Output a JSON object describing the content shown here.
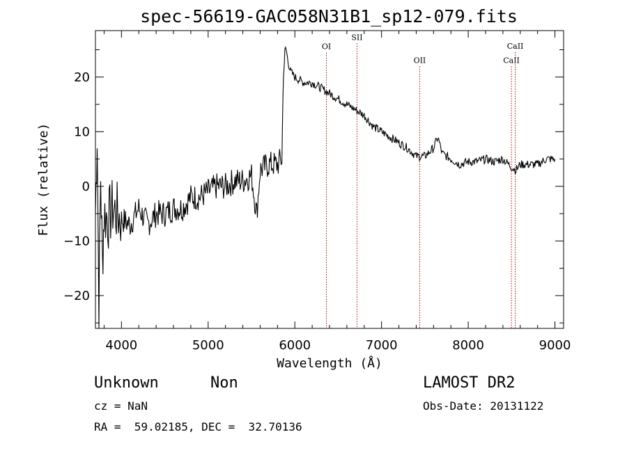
{
  "chart_data": {
    "type": "line",
    "title": "spec-56619-GAC058N31B1_sp12-079.fits",
    "xlabel": "Wavelength (Å)",
    "ylabel": "Flux (relative)",
    "xlim": [
      3700,
      9100
    ],
    "ylim": [
      -26,
      28.5
    ],
    "x_ticks": [
      4000,
      5000,
      6000,
      7000,
      8000,
      9000
    ],
    "y_ticks": [
      -20,
      -10,
      0,
      10,
      20
    ],
    "x_tick_labels": [
      "4000",
      "5000",
      "6000",
      "7000",
      "8000",
      "9000"
    ],
    "y_tick_labels": [
      "−20",
      "−10",
      "0",
      "10",
      "20"
    ],
    "line_color": "#000000",
    "marker_color": "#aa0000",
    "series": [
      {
        "x": [
          3700,
          3720,
          3740,
          3760,
          3780,
          3800,
          3850,
          3900,
          3950,
          4000,
          4100,
          4200,
          4300,
          4400,
          4500,
          4600,
          4700,
          4800,
          4900,
          5000,
          5100,
          5200,
          5300,
          5400,
          5500,
          5560,
          5600,
          5700,
          5800,
          5850,
          5870,
          5900,
          5920,
          5950,
          6000,
          6100,
          6200,
          6300,
          6400,
          6500,
          6600,
          6700,
          6750,
          6800,
          6900,
          7000,
          7100,
          7200,
          7300,
          7400,
          7500,
          7600,
          7650,
          7700,
          7800,
          7900,
          8000,
          8100,
          8200,
          8300,
          8400,
          8500,
          8550,
          8600,
          8700,
          8800,
          8900,
          9000
        ],
        "y": [
          -5,
          10,
          -22,
          2,
          -14,
          -5,
          -6,
          -4,
          -5,
          -6,
          -7,
          -4,
          -7,
          -5,
          -5,
          -4,
          -4,
          -2,
          -2,
          -1,
          0,
          0,
          1,
          1,
          2,
          -5,
          3,
          4,
          4,
          5,
          22,
          25,
          23,
          21,
          20,
          19,
          19,
          18,
          17,
          16,
          15,
          14,
          13.5,
          13,
          11,
          10,
          9,
          8,
          7,
          5.5,
          5.5,
          7,
          9,
          6,
          5,
          4,
          4.5,
          4.5,
          5,
          4.5,
          5,
          3.5,
          3,
          4,
          4,
          4,
          5,
          5
        ]
      }
    ],
    "line_markers": [
      {
        "label": "OI",
        "x": 6364,
        "label_y": 25.1
      },
      {
        "label": "SII",
        "x": 6717,
        "label_y": 26.8
      },
      {
        "label": "OII",
        "x": 7440,
        "label_y": 22.6
      },
      {
        "label": "CaII",
        "x": 8498,
        "label_y": 22.6
      },
      {
        "label": "CaII",
        "x": 8542,
        "label_y": 25.2
      }
    ]
  },
  "info": {
    "object_type": "Unknown",
    "object_subtype": "Non",
    "survey": "LAMOST DR2",
    "cz": "cz = NaN",
    "obs_date": "Obs-Date: 20131122",
    "coords": "RA =  59.02185, DEC =  32.70136"
  }
}
